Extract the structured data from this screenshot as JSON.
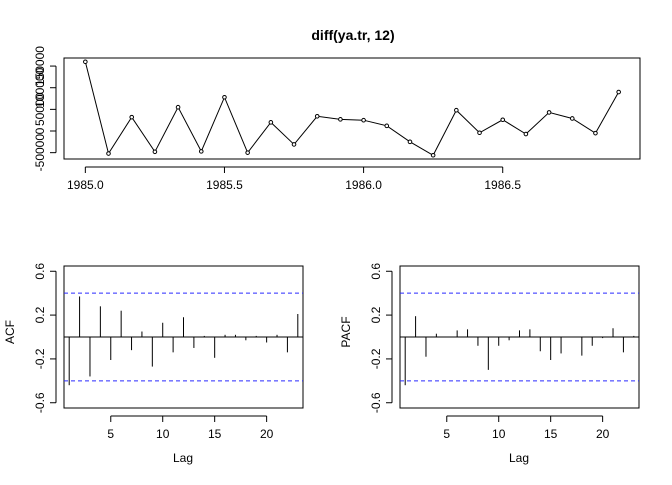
{
  "chart_data": [
    {
      "type": "line",
      "title": "diff(ya.tr, 12)",
      "xlabel": "",
      "ylabel": "",
      "x": [
        1985.0,
        1985.0833,
        1985.1667,
        1985.25,
        1985.3333,
        1985.4167,
        1985.5,
        1985.5833,
        1985.6667,
        1985.75,
        1985.8333,
        1985.9167,
        1986.0,
        1986.0833,
        1986.1667,
        1986.25,
        1986.3333,
        1986.4167,
        1986.5,
        1986.5833,
        1986.6667,
        1986.75,
        1986.8333,
        1986.9167
      ],
      "values": [
        160000,
        -52000,
        32000,
        -48000,
        55000,
        -47000,
        78000,
        -50000,
        20000,
        -31000,
        34000,
        27000,
        25000,
        12000,
        -25000,
        -56000,
        48000,
        -4000,
        26000,
        -7000,
        43000,
        29000,
        -5000,
        90000
      ],
      "xlim": [
        1985.0,
        1986.9167
      ],
      "xticks": [
        {
          "v": 1985.0,
          "label": "1985.0"
        },
        {
          "v": 1985.5,
          "label": "1985.5"
        },
        {
          "v": 1986.0,
          "label": "1986.0"
        },
        {
          "v": 1986.5,
          "label": "1986.5"
        }
      ],
      "ylim": [
        -56000,
        160000
      ],
      "yticks": [
        {
          "v": -50000,
          "label": "-50000"
        },
        {
          "v": 0,
          "label": "0"
        },
        {
          "v": 50000,
          "label": "50000"
        },
        {
          "v": 100000,
          "label": "100000"
        },
        {
          "v": 150000,
          "label": "150000"
        }
      ],
      "grid": false
    },
    {
      "type": "bar",
      "title": "",
      "xlabel": "Lag",
      "ylabel": "ACF",
      "x": [
        1,
        2,
        3,
        4,
        5,
        6,
        7,
        8,
        9,
        10,
        11,
        12,
        13,
        14,
        15,
        16,
        17,
        18,
        19,
        20,
        21,
        22,
        23
      ],
      "values": [
        -0.44,
        0.37,
        -0.36,
        0.28,
        -0.21,
        0.24,
        -0.12,
        0.05,
        -0.27,
        0.13,
        -0.14,
        0.18,
        -0.1,
        0.01,
        -0.19,
        0.02,
        0.02,
        -0.03,
        0.01,
        -0.05,
        0.02,
        -0.14,
        0.21
      ],
      "ci": 0.4,
      "xlim": [
        0.5,
        23.5
      ],
      "xticks": [
        {
          "v": 5,
          "label": "5"
        },
        {
          "v": 10,
          "label": "10"
        },
        {
          "v": 15,
          "label": "15"
        },
        {
          "v": 20,
          "label": "20"
        }
      ],
      "ylim": [
        -0.6,
        0.6
      ],
      "yticks": [
        {
          "v": -0.6,
          "label": "-0.6"
        },
        {
          "v": -0.2,
          "label": "-0.2"
        },
        {
          "v": 0.2,
          "label": "0.2"
        },
        {
          "v": 0.6,
          "label": "0.6"
        }
      ],
      "grid": false
    },
    {
      "type": "bar",
      "title": "",
      "xlabel": "Lag",
      "ylabel": "PACF",
      "x": [
        1,
        2,
        3,
        4,
        5,
        6,
        7,
        8,
        9,
        10,
        11,
        12,
        13,
        14,
        15,
        16,
        17,
        18,
        19,
        20,
        21,
        22,
        23
      ],
      "values": [
        -0.44,
        0.19,
        -0.18,
        0.03,
        0.0,
        0.06,
        0.07,
        -0.08,
        -0.3,
        -0.08,
        -0.03,
        0.06,
        0.07,
        -0.13,
        -0.21,
        -0.15,
        0.0,
        -0.17,
        -0.08,
        -0.01,
        0.08,
        -0.14,
        0.01
      ],
      "ci": 0.4,
      "xlim": [
        0.5,
        23.5
      ],
      "xticks": [
        {
          "v": 5,
          "label": "5"
        },
        {
          "v": 10,
          "label": "10"
        },
        {
          "v": 15,
          "label": "15"
        },
        {
          "v": 20,
          "label": "20"
        }
      ],
      "ylim": [
        -0.6,
        0.6
      ],
      "yticks": [
        {
          "v": -0.6,
          "label": "-0.6"
        },
        {
          "v": -0.2,
          "label": "-0.2"
        },
        {
          "v": 0.2,
          "label": "0.2"
        },
        {
          "v": 0.6,
          "label": "0.6"
        }
      ],
      "grid": false
    }
  ],
  "colors": {
    "ink": "#000000",
    "ci_line": "#2a2aff",
    "background": "#ffffff"
  }
}
